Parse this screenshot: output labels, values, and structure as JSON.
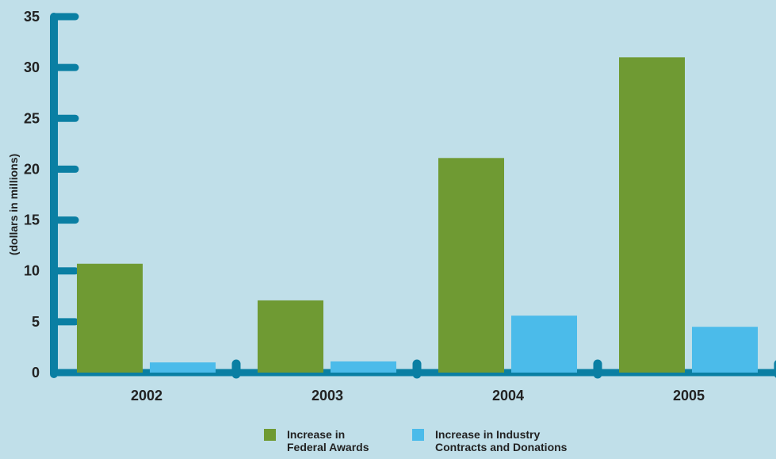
{
  "chart_data": {
    "type": "bar",
    "categories": [
      "2002",
      "2003",
      "2004",
      "2005"
    ],
    "series": [
      {
        "name": "Increase in Federal Awards",
        "legend_lines": [
          "Increase in",
          "Federal Awards"
        ],
        "values": [
          10.7,
          7.1,
          21.1,
          31.0
        ],
        "color": "#6f9a33"
      },
      {
        "name": "Increase in Industry Contracts and Donations",
        "legend_lines": [
          "Increase in Industry",
          "Contracts and Donations"
        ],
        "values": [
          1.0,
          1.1,
          5.6,
          4.5
        ],
        "color": "#4bbbea"
      }
    ],
    "ylabel": "(dollars in millions)",
    "xlabel": "",
    "ylim": [
      0,
      35
    ],
    "yticks": [
      0,
      5,
      10,
      15,
      20,
      25,
      30,
      35
    ],
    "grid": false,
    "legend_position": "bottom-center",
    "colors": {
      "background": "#c0dfe9",
      "axis": "#0a7fa3"
    }
  }
}
